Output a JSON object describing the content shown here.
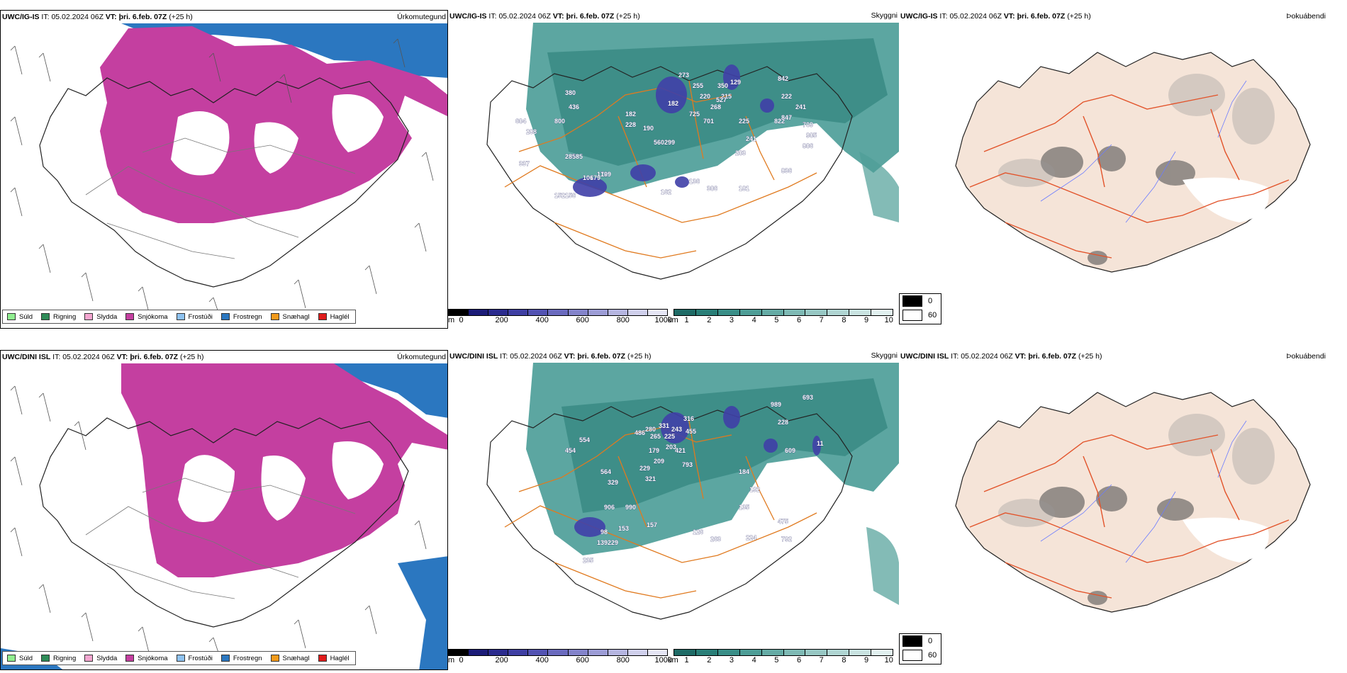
{
  "rows": [
    {
      "model": "UWC/IG-IS",
      "it_label": "IT:",
      "it": "05.02.2024 06Z",
      "vt_label": "VT:",
      "vt": "þri. 6.feb. 07Z",
      "lead": "(+25 h)",
      "fields": {
        "precip": "Úrkomutegund",
        "cloud": "Skyggni",
        "fog": "Þokuábendi"
      },
      "peaks": [
        "337",
        "380",
        "436",
        "604",
        "288",
        "800",
        "285",
        "585",
        "179",
        "172",
        "106",
        "152",
        "156",
        "109",
        "182",
        "228",
        "190",
        "560",
        "299",
        "273",
        "255",
        "220",
        "350",
        "215",
        "527",
        "129",
        "725",
        "701",
        "268",
        "225",
        "241",
        "203",
        "822",
        "847",
        "842",
        "241",
        "222",
        "709",
        "905",
        "806",
        "136",
        "306",
        "181",
        "836",
        "182",
        "162"
      ]
    },
    {
      "model": "UWC/DINI ISL",
      "it_label": "IT:",
      "it": "05.02.2024 06Z",
      "vt_label": "VT:",
      "vt": "þri. 6.feb. 07Z",
      "lead": "(+25 h)",
      "fields": {
        "precip": "Úrkomutegund",
        "cloud": "Skyggni",
        "fog": "Þokuábendi"
      },
      "peaks": [
        "554",
        "454",
        "486",
        "280",
        "331",
        "265",
        "203",
        "243",
        "225",
        "421",
        "455",
        "316",
        "179",
        "209",
        "793",
        "229",
        "321",
        "564",
        "329",
        "906",
        "990",
        "989",
        "693",
        "228",
        "609",
        "11",
        "184",
        "192",
        "135",
        "98",
        "153",
        "157",
        "139",
        "229",
        "126",
        "263",
        "224",
        "475",
        "792",
        "235"
      ]
    }
  ],
  "precip_legend": [
    {
      "label": "Súld",
      "color": "#90ee90"
    },
    {
      "label": "Rigning",
      "color": "#2e8b57"
    },
    {
      "label": "Slydda",
      "color": "#f4a6d0"
    },
    {
      "label": "Snjókoma",
      "color": "#c43fa0"
    },
    {
      "label": "Frostúði",
      "color": "#8ec2f0"
    },
    {
      "label": "Frostregn",
      "color": "#2b77c0"
    },
    {
      "label": "Snæhagl",
      "color": "#f39a1b"
    },
    {
      "label": "Haglél",
      "color": "#e01b1b"
    }
  ],
  "cloudbase": {
    "unit": "m",
    "ticks": [
      "0",
      "200",
      "400",
      "600",
      "800",
      "1000"
    ],
    "colors": [
      "#000000",
      "#1c1c78",
      "#2b2b8e",
      "#3f3fa3",
      "#5353b3",
      "#6b6bbf",
      "#8484cb",
      "#9d9dd6",
      "#b6b6e1",
      "#d0d0ec",
      "#e6e6f5"
    ]
  },
  "visibility": {
    "unit": "km",
    "ticks": [
      "1",
      "2",
      "3",
      "4",
      "5",
      "6",
      "7",
      "8",
      "9",
      "10"
    ],
    "colors": [
      "#1f6b66",
      "#2a7f78",
      "#3a8f88",
      "#4f9e97",
      "#66aca6",
      "#7fbab5",
      "#98c8c4",
      "#b1d6d3",
      "#cae4e2",
      "#e2f1f0"
    ]
  },
  "fog_legend": [
    {
      "value": "0",
      "color": "#000000"
    },
    {
      "value": "60",
      "color": "#ffffff"
    }
  ]
}
